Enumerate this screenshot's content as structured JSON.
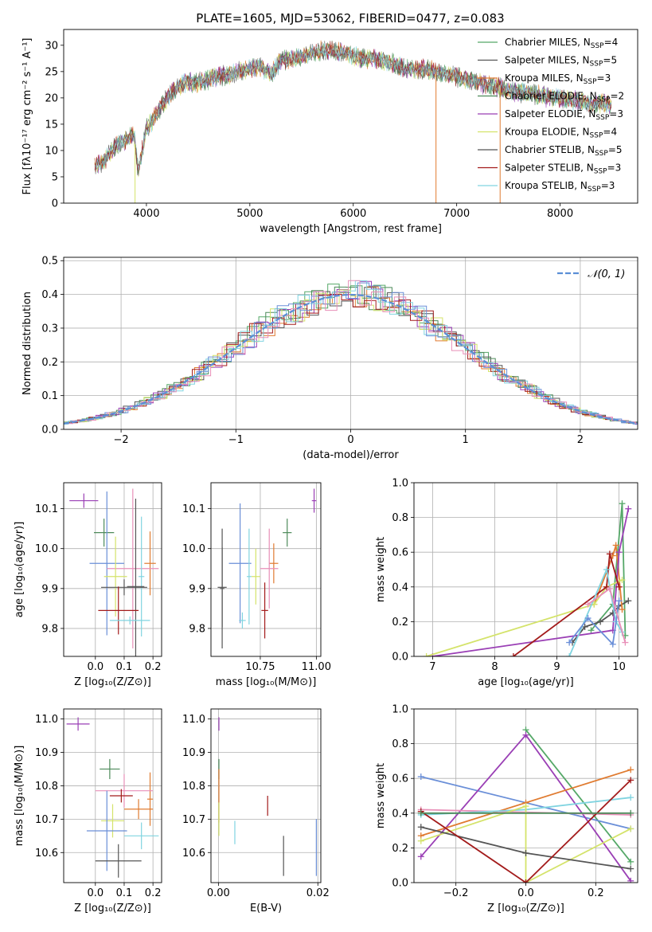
{
  "figure": {
    "title": "PLATE=1605, MJD=53062, FIBERID=0477, z=0.083"
  },
  "chart_data": [
    {
      "id": "spectrum",
      "type": "line",
      "xlabel": "wavelength [Angstrom, rest frame]",
      "ylabel": "Flux [fλ10⁻¹⁷ erg cm⁻² s⁻¹ A⁻¹]",
      "xlim": [
        3200,
        8750
      ],
      "ylim": [
        0,
        33
      ],
      "xticks": [
        4000,
        5000,
        6000,
        7000,
        8000
      ],
      "yticks": [
        0,
        5,
        10,
        15,
        20,
        25,
        30
      ],
      "xtick_labels": [
        "4000",
        "5000",
        "6000",
        "7000",
        "8000"
      ],
      "ytick_labels": [
        "0",
        "5",
        "10",
        "15",
        "20",
        "25",
        "30"
      ],
      "grid": false,
      "legend_position": "top-right",
      "continuum": {
        "x": [
          3500,
          3600,
          3700,
          3800,
          3880,
          3920,
          4000,
          4100,
          4200,
          4300,
          4400,
          4500,
          4600,
          4700,
          4800,
          4900,
          5000,
          5100,
          5200,
          5300,
          5400,
          5500,
          5600,
          5700,
          5800,
          5900,
          6000,
          6100,
          6200,
          6300,
          6400,
          6500,
          6600,
          6700,
          6800,
          6900,
          7000,
          7100,
          7200,
          7300,
          7400,
          7500,
          7600,
          7700,
          7800,
          7900,
          8000,
          8100,
          8200,
          8300,
          8400,
          8500
        ],
        "y": [
          7,
          8,
          11,
          12,
          13,
          6,
          14,
          17,
          20,
          22,
          23,
          23,
          23.5,
          24,
          24.5,
          25,
          25.5,
          26,
          24.5,
          27,
          27.5,
          28,
          28.5,
          29,
          29,
          28.5,
          28,
          27.5,
          27.5,
          27,
          26.5,
          25.5,
          25.5,
          25.5,
          25,
          24.5,
          24,
          23.5,
          23,
          22.5,
          22,
          21.5,
          21,
          21,
          20.5,
          20,
          20,
          19.5,
          19.5,
          19,
          19,
          18.5
        ]
      },
      "series": [
        {
          "name": "Chabrier MILES, N",
          "sub": "SSP",
          "eq": "=4",
          "color": "#55a868"
        },
        {
          "name": "Salpeter MILES, N",
          "sub": "SSP",
          "eq": "=5",
          "color": "#555555"
        },
        {
          "name": "Kroupa MILES, N",
          "sub": "SSP",
          "eq": "=3",
          "color": "#e07b30"
        },
        {
          "name": "Chabrier ELODIE, N",
          "sub": "SSP",
          "eq": "=2",
          "color": "#4d8a5a"
        },
        {
          "name": "Salpeter ELODIE, N",
          "sub": "SSP",
          "eq": "=3",
          "color": "#9a3fb5"
        },
        {
          "name": "Kroupa ELODIE, N",
          "sub": "SSP",
          "eq": "=4",
          "color": "#d4e36a"
        },
        {
          "name": "Chabrier STELIB, N",
          "sub": "SSP",
          "eq": "=5",
          "color": "#555555"
        },
        {
          "name": "Salpeter STELIB, N",
          "sub": "SSP",
          "eq": "=3",
          "color": "#a31b1b"
        },
        {
          "name": "Kroupa STELIB, N",
          "sub": "SSP",
          "eq": "=3",
          "color": "#80d4e0"
        }
      ],
      "spikes": [
        {
          "x": 3890,
          "color": "#d4e36a"
        },
        {
          "x": 6800,
          "color": "#e07b30"
        },
        {
          "x": 7420,
          "color": "#e07b30"
        }
      ]
    },
    {
      "id": "residuals",
      "type": "histogram",
      "xlabel": "(data-model)/error",
      "ylabel": "Normed distribution",
      "xlim": [
        -2.5,
        2.5
      ],
      "ylim": [
        0,
        0.51
      ],
      "xticks": [
        -2,
        -1,
        0,
        1,
        2
      ],
      "yticks": [
        0,
        0.1,
        0.2,
        0.3,
        0.4,
        0.5
      ],
      "xtick_labels": [
        "−2",
        "−1",
        "0",
        "1",
        "2"
      ],
      "ytick_labels": [
        "0.0",
        "0.1",
        "0.2",
        "0.3",
        "0.4",
        "0.5"
      ],
      "grid": true,
      "legend_position": "top-right",
      "reference": {
        "name": "𝒩(0, 1)",
        "color": "#5b8fd6",
        "mean": 0,
        "sigma": 1
      },
      "bin_width": 0.1,
      "colors": [
        "#55a868",
        "#555555",
        "#e07b30",
        "#4d8a5a",
        "#9a3fb5",
        "#d4e36a",
        "#a31b1b",
        "#80d4e0",
        "#6a8fd8",
        "#e88fb8"
      ]
    },
    {
      "id": "age-vs-Z",
      "type": "errorbar",
      "xlabel": "Z [log₁₀(Z/Z⊙)]",
      "ylabel": "age  [log₁₀(age/yr)]",
      "xlim": [
        -0.11,
        0.23
      ],
      "ylim": [
        9.73,
        10.165
      ],
      "xticks": [
        0,
        0.1,
        0.2
      ],
      "yticks": [
        9.8,
        9.9,
        10.0,
        10.1
      ],
      "xtick_labels": [
        "0.0",
        "0.1",
        "0.2"
      ],
      "ytick_labels": [
        "9.8",
        "9.9",
        "10.0",
        "10.1"
      ],
      "grid": true,
      "points": [
        {
          "x": -0.04,
          "y": 10.12,
          "xerr": 0.05,
          "yerr": 0.018,
          "color": "#9a3fb5"
        },
        {
          "x": 0.03,
          "y": 10.04,
          "xerr": 0.035,
          "yerr": 0.035,
          "color": "#4d8a5a"
        },
        {
          "x": 0.04,
          "y": 9.963,
          "xerr": 0.06,
          "yerr": 0.18,
          "color": "#6a8fd8"
        },
        {
          "x": 0.19,
          "y": 9.963,
          "xerr": 0.02,
          "yerr": 0.08,
          "color": "#e07b30"
        },
        {
          "x": 0.13,
          "y": 9.95,
          "xerr": 0.09,
          "yerr": 0.2,
          "color": "#e88fb8"
        },
        {
          "x": 0.07,
          "y": 9.93,
          "xerr": 0.04,
          "yerr": 0.1,
          "color": "#d4e36a"
        },
        {
          "x": 0.16,
          "y": 9.93,
          "xerr": 0.01,
          "yerr": 0.15,
          "color": "#80d4e0"
        },
        {
          "x": 0.14,
          "y": 9.905,
          "xerr": 0.03,
          "yerr": 0.22,
          "color": "#555555"
        },
        {
          "x": 0.1,
          "y": 9.903,
          "xerr": 0.08,
          "yerr": 0.02,
          "color": "#555555"
        },
        {
          "x": 0.08,
          "y": 9.845,
          "xerr": 0.07,
          "yerr": 0.06,
          "color": "#a31b1b"
        },
        {
          "x": 0.12,
          "y": 9.82,
          "xerr": 0.07,
          "yerr": 0.01,
          "color": "#80d4e0"
        }
      ]
    },
    {
      "id": "age-vs-mass",
      "type": "errorbar",
      "xlabel": "mass [log₁₀(M/M⊙)]",
      "ylabel": "",
      "xlim": [
        10.53,
        11.02
      ],
      "ylim": [
        9.73,
        10.165
      ],
      "xticks": [
        10.75,
        11.0
      ],
      "yticks": [
        9.8,
        9.9,
        10.0,
        10.1
      ],
      "xtick_labels": [
        "10.75",
        "11.00"
      ],
      "ytick_labels": [
        "9.8",
        "9.9",
        "10.0",
        "10.1"
      ],
      "grid": true,
      "points": [
        {
          "x": 10.99,
          "y": 10.12,
          "xerr": 0.01,
          "yerr": 0.03,
          "color": "#9a3fb5"
        },
        {
          "x": 10.87,
          "y": 10.04,
          "xerr": 0.02,
          "yerr": 0.035,
          "color": "#4d8a5a"
        },
        {
          "x": 10.66,
          "y": 9.963,
          "xerr": 0.05,
          "yerr": 0.15,
          "color": "#6a8fd8"
        },
        {
          "x": 10.81,
          "y": 9.963,
          "xerr": 0.02,
          "yerr": 0.05,
          "color": "#e07b30"
        },
        {
          "x": 10.79,
          "y": 9.95,
          "xerr": 0.04,
          "yerr": 0.1,
          "color": "#e88fb8"
        },
        {
          "x": 10.73,
          "y": 9.93,
          "xerr": 0.02,
          "yerr": 0.07,
          "color": "#d4e36a"
        },
        {
          "x": 10.7,
          "y": 9.93,
          "xerr": 0.01,
          "yerr": 0.12,
          "color": "#80d4e0"
        },
        {
          "x": 10.58,
          "y": 9.903,
          "xerr": 0.02,
          "yerr": 0.1,
          "color": "#555555"
        },
        {
          "x": 10.58,
          "y": 9.9,
          "xerr": 0.01,
          "yerr": 0.15,
          "color": "#555555"
        },
        {
          "x": 10.77,
          "y": 9.845,
          "xerr": 0.015,
          "yerr": 0.07,
          "color": "#a31b1b"
        },
        {
          "x": 10.67,
          "y": 9.82,
          "xerr": 0.015,
          "yerr": 0.02,
          "color": "#80d4e0"
        }
      ]
    },
    {
      "id": "weights-vs-age",
      "type": "line",
      "xlabel": "age  [log₁₀(age/yr)]",
      "ylabel": "mass weight",
      "xlim": [
        6.7,
        10.3
      ],
      "ylim": [
        0,
        1
      ],
      "xticks": [
        7,
        8,
        9,
        10
      ],
      "yticks": [
        0,
        0.2,
        0.4,
        0.6,
        0.8,
        1.0
      ],
      "xtick_labels": [
        "7",
        "8",
        "9",
        "10"
      ],
      "ytick_labels": [
        "0.0",
        "0.2",
        "0.4",
        "0.6",
        "0.8",
        "1.0"
      ],
      "grid": true,
      "series": [
        {
          "color": "#55a868",
          "x": [
            9.55,
            9.9,
            10.05,
            10.1
          ],
          "y": [
            0.15,
            0.3,
            0.88,
            0.12
          ]
        },
        {
          "color": "#555555",
          "x": [
            9.25,
            9.45,
            9.7,
            9.9,
            10.0,
            10.15
          ],
          "y": [
            0.08,
            0.17,
            0.2,
            0.25,
            0.29,
            0.32
          ]
        },
        {
          "color": "#e07b30",
          "x": [
            9.6,
            9.9,
            9.95,
            10.05
          ],
          "y": [
            0.3,
            0.58,
            0.64,
            0.27
          ]
        },
        {
          "color": "#9a3fb5",
          "x": [
            7.0,
            9.9,
            10.0,
            10.15
          ],
          "y": [
            0.0,
            0.15,
            0.6,
            0.85
          ]
        },
        {
          "color": "#d4e36a",
          "x": [
            6.9,
            9.6,
            9.8,
            10.05
          ],
          "y": [
            0.0,
            0.3,
            0.4,
            0.44
          ]
        },
        {
          "color": "#a31b1b",
          "x": [
            8.3,
            9.8,
            9.85,
            10.0
          ],
          "y": [
            0.0,
            0.4,
            0.59,
            0.4
          ]
        },
        {
          "color": "#80d4e0",
          "x": [
            9.2,
            9.8,
            9.95,
            10.05
          ],
          "y": [
            0.0,
            0.5,
            0.2,
            0.14
          ]
        },
        {
          "color": "#6a8fd8",
          "x": [
            9.2,
            9.5,
            9.9,
            10.0
          ],
          "y": [
            0.08,
            0.22,
            0.07,
            0.32
          ]
        },
        {
          "color": "#e88fb8",
          "x": [
            9.5,
            9.85,
            10.1
          ],
          "y": [
            0.3,
            0.39,
            0.08
          ]
        }
      ]
    },
    {
      "id": "mass-vs-Z",
      "type": "errorbar",
      "xlabel": "Z [log₁₀(Z/Z⊙)]",
      "ylabel": "mass [log₁₀(M/M⊙)]",
      "xlim": [
        -0.11,
        0.23
      ],
      "ylim": [
        10.51,
        11.03
      ],
      "xticks": [
        0,
        0.1,
        0.2
      ],
      "yticks": [
        10.6,
        10.7,
        10.8,
        10.9,
        11.0
      ],
      "xtick_labels": [
        "0.0",
        "0.1",
        "0.2"
      ],
      "ytick_labels": [
        "10.6",
        "10.7",
        "10.8",
        "10.9",
        "11.0"
      ],
      "grid": true,
      "points": [
        {
          "x": -0.06,
          "y": 10.985,
          "xerr": 0.04,
          "yerr": 0.02,
          "color": "#9a3fb5"
        },
        {
          "x": 0.05,
          "y": 10.85,
          "xerr": 0.035,
          "yerr": 0.03,
          "color": "#4d8a5a"
        },
        {
          "x": 0.19,
          "y": 10.76,
          "xerr": 0.01,
          "yerr": 0.08,
          "color": "#e07b30"
        },
        {
          "x": 0.1,
          "y": 10.785,
          "xerr": 0.1,
          "yerr": 0.05,
          "color": "#e88fb8"
        },
        {
          "x": 0.09,
          "y": 10.77,
          "xerr": 0.04,
          "yerr": 0.02,
          "color": "#a31b1b"
        },
        {
          "x": 0.15,
          "y": 10.73,
          "xerr": 0.05,
          "yerr": 0.03,
          "color": "#e07b30"
        },
        {
          "x": 0.06,
          "y": 10.695,
          "xerr": 0.04,
          "yerr": 0.05,
          "color": "#d4e36a"
        },
        {
          "x": 0.04,
          "y": 10.665,
          "xerr": 0.07,
          "yerr": 0.12,
          "color": "#6a8fd8"
        },
        {
          "x": 0.16,
          "y": 10.65,
          "xerr": 0.06,
          "yerr": 0.04,
          "color": "#80d4e0"
        },
        {
          "x": 0.08,
          "y": 10.575,
          "xerr": 0.08,
          "yerr": 0.05,
          "color": "#555555"
        }
      ]
    },
    {
      "id": "mass-vs-EBV",
      "type": "errorbar",
      "xlabel": "E(B-V)",
      "ylabel": "",
      "xlim": [
        -0.0015,
        0.0206
      ],
      "ylim": [
        10.51,
        11.03
      ],
      "xticks": [
        0,
        0.02
      ],
      "yticks": [
        10.6,
        10.7,
        10.8,
        10.9,
        11.0
      ],
      "xtick_labels": [
        "0.00",
        "0.02"
      ],
      "ytick_labels": [
        "10.6",
        "10.7",
        "10.8",
        "10.9",
        "11.0"
      ],
      "grid": true,
      "points": [
        {
          "x": 0.0001,
          "y": 10.985,
          "xerr": 0,
          "yerr": 0.02,
          "color": "#9a3fb5"
        },
        {
          "x": 0.0001,
          "y": 10.85,
          "xerr": 0,
          "yerr": 0.03,
          "color": "#4d8a5a"
        },
        {
          "x": 0.0001,
          "y": 10.77,
          "xerr": 0,
          "yerr": 0.08,
          "color": "#e07b30"
        },
        {
          "x": 0.0001,
          "y": 10.7,
          "xerr": 0,
          "yerr": 0.05,
          "color": "#d4e36a"
        },
        {
          "x": 0.0033,
          "y": 10.66,
          "xerr": 0,
          "yerr": 0.035,
          "color": "#80d4e0"
        },
        {
          "x": 0.0099,
          "y": 10.74,
          "xerr": 0,
          "yerr": 0.03,
          "color": "#a31b1b"
        },
        {
          "x": 0.0131,
          "y": 10.59,
          "xerr": 0,
          "yerr": 0.06,
          "color": "#555555"
        },
        {
          "x": 0.0197,
          "y": 10.615,
          "xerr": 0,
          "yerr": 0.085,
          "color": "#6a8fd8"
        }
      ]
    },
    {
      "id": "weights-vs-Z",
      "type": "line",
      "xlabel": "Z [log₁₀(Z/Z⊙)]",
      "ylabel": "mass weight",
      "xlim": [
        -0.32,
        0.32
      ],
      "ylim": [
        0,
        1
      ],
      "xticks": [
        -0.2,
        0,
        0.2
      ],
      "yticks": [
        0,
        0.2,
        0.4,
        0.6,
        0.8,
        1.0
      ],
      "xtick_labels": [
        "−0.2",
        "0.0",
        "0.2"
      ],
      "ytick_labels": [
        "0.0",
        "0.2",
        "0.4",
        "0.6",
        "0.8",
        "1.0"
      ],
      "grid": true,
      "series": [
        {
          "color": "#55a868",
          "x": [
            0,
            0.3
          ],
          "y": [
            0.88,
            0.12
          ]
        },
        {
          "color": "#6a8fd8",
          "x": [
            -0.3,
            0.3
          ],
          "y": [
            0.61,
            0.31
          ]
        },
        {
          "color": "#9a3fb5",
          "x": [
            -0.3,
            0,
            0.3
          ],
          "y": [
            0.15,
            0.85,
            0.01
          ]
        },
        {
          "color": "#e07b30",
          "x": [
            -0.3,
            0,
            0.3
          ],
          "y": [
            0.27,
            0.46,
            0.65
          ]
        },
        {
          "color": "#e88fb8",
          "x": [
            -0.3,
            0.3
          ],
          "y": [
            0.42,
            0.39
          ]
        },
        {
          "color": "#80d4e0",
          "x": [
            -0.3,
            0,
            0.3
          ],
          "y": [
            0.39,
            0.42,
            0.49
          ]
        },
        {
          "color": "#d4e36a",
          "x": [
            -0.3,
            0,
            0,
            0.3
          ],
          "y": [
            0.24,
            0.44,
            0.0,
            0.31
          ]
        },
        {
          "color": "#555555",
          "x": [
            -0.3,
            0,
            0.3
          ],
          "y": [
            0.32,
            0.17,
            0.08
          ]
        },
        {
          "color": "#a31b1b",
          "x": [
            -0.3,
            0,
            0.3
          ],
          "y": [
            0.41,
            0.0,
            0.59
          ]
        },
        {
          "color": "#4d8a5a",
          "x": [
            -0.3,
            0.3
          ],
          "y": [
            0.4,
            0.4
          ]
        }
      ]
    }
  ]
}
